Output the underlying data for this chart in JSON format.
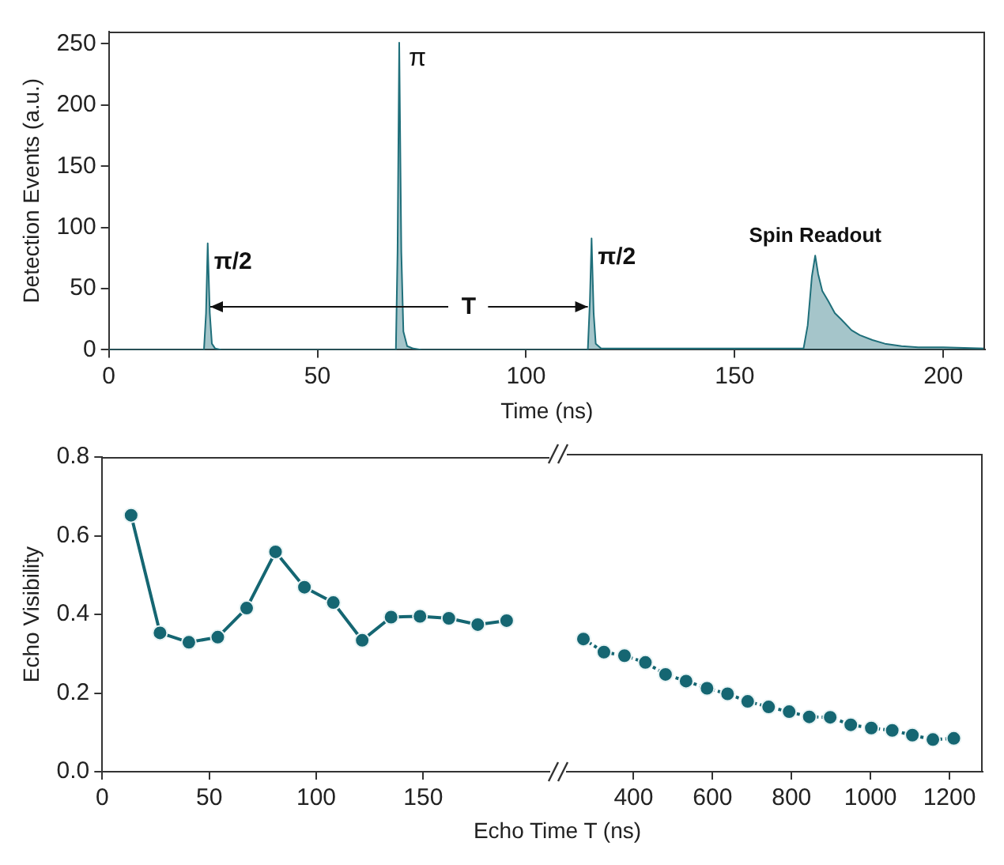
{
  "chart_data": [
    {
      "type": "area",
      "xlabel": "Time (ns)",
      "ylabel": "Detection Events (a.u.)",
      "color": "#1f6f7a",
      "x": [
        0,
        22.8,
        23.3,
        23.7,
        24.2,
        24.7,
        25.5,
        27,
        68.8,
        69.2,
        69.6,
        70.1,
        70.6,
        71.5,
        73,
        75,
        114.8,
        115.3,
        115.7,
        116.2,
        116.7,
        118,
        120,
        140,
        160,
        166.5,
        167.5,
        168.5,
        169.3,
        170,
        171,
        172.4,
        174,
        175.5,
        178,
        180,
        183,
        186,
        190,
        194,
        200,
        210
      ],
      "values": [
        0,
        0,
        30,
        87,
        30,
        5,
        1,
        0,
        0,
        80,
        251,
        80,
        15,
        3,
        1,
        0,
        0,
        40,
        91,
        30,
        5,
        1,
        1,
        1,
        1,
        1,
        20,
        60,
        77,
        62,
        48,
        40,
        30,
        25,
        16,
        12,
        8,
        5,
        3,
        2,
        2,
        1
      ],
      "xlim": [
        0,
        210
      ],
      "xticks": [
        0,
        50,
        100,
        150,
        200
      ],
      "ylim": [
        0,
        260
      ],
      "yticks": [
        0,
        50,
        100,
        150,
        200,
        250
      ],
      "annotations": [
        {
          "text": "π/2",
          "x": 23.7,
          "y": 87
        },
        {
          "text": "π",
          "x": 69.6,
          "y": 251
        },
        {
          "text": "π/2",
          "x": 115.7,
          "y": 91
        },
        {
          "text": "T",
          "x": 115.7,
          "y": 35
        },
        {
          "text": "Spin Readout",
          "x": 169.3,
          "y": 77
        }
      ],
      "marker": "none"
    },
    {
      "type": "line",
      "xlabel": "Echo Time T (ns)",
      "ylabel": "Echo Visibility",
      "color": "#156672",
      "x": [
        13.5,
        27,
        40.5,
        54,
        67.5,
        81,
        94.5,
        108,
        121.5,
        135,
        148.5,
        162,
        175.5,
        189
      ],
      "values": [
        0.652,
        0.353,
        0.329,
        0.342,
        0.416,
        0.559,
        0.469,
        0.43,
        0.334,
        0.393,
        0.395,
        0.39,
        0.374,
        0.384
      ],
      "xlim": [
        0,
        209
      ],
      "xticks": [
        0,
        50,
        100,
        150
      ],
      "ylim": [
        0,
        0.8
      ],
      "yticks": [
        {
          "value": 0,
          "label": "0.0"
        },
        0.2,
        0.4,
        0.6,
        0.8
      ],
      "marker": "circle",
      "line_style": "solid"
    },
    {
      "type": "line",
      "color": "#156672",
      "x": [
        273,
        325,
        377,
        430,
        481,
        533,
        586,
        638,
        689,
        742,
        794,
        845,
        898,
        950,
        1002,
        1055,
        1106,
        1158,
        1211
      ],
      "values": [
        0.334,
        0.301,
        0.292,
        0.275,
        0.245,
        0.228,
        0.21,
        0.196,
        0.177,
        0.163,
        0.151,
        0.138,
        0.137,
        0.118,
        0.11,
        0.104,
        0.092,
        0.081,
        0.084
      ],
      "xlim": [
        231,
        1284
      ],
      "xticks": [
        400,
        600,
        800,
        1000,
        1200
      ],
      "ylim": [
        0,
        0.8
      ],
      "tick_labels": "x",
      "marker": "circle",
      "line_style": "dotted"
    }
  ]
}
